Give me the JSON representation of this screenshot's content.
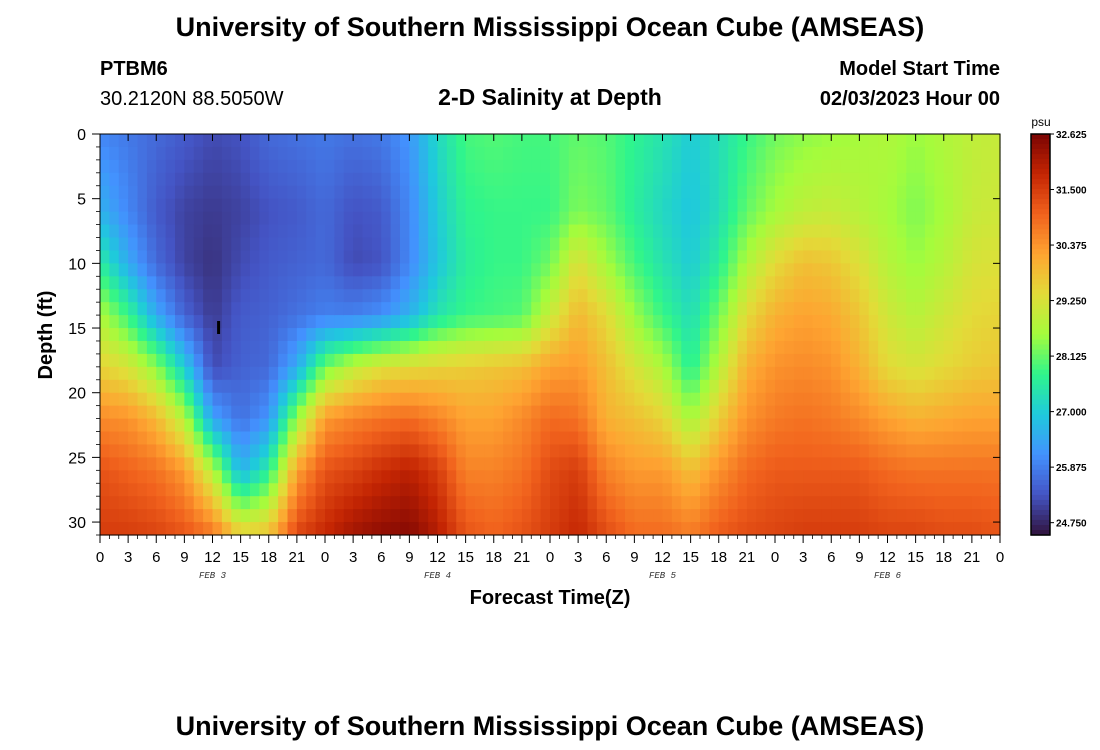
{
  "header": {
    "title": "University of Southern Mississippi Ocean Cube (AMSEAS)",
    "station_id": "PTBM6",
    "coords": "30.2120N  88.5050W",
    "subtitle": "2-D Salinity at Depth",
    "model_label": "Model Start Time",
    "model_time": "02/03/2023 Hour 00"
  },
  "footer": {
    "title": "University of Southern Mississippi Ocean Cube (AMSEAS)"
  },
  "chart_data": {
    "type": "heatmap",
    "title": "2-D Salinity at Depth",
    "xlabel": "Forecast Time(Z)",
    "ylabel": "Depth (ft)",
    "x_hours_range": [
      0,
      96
    ],
    "x_tick_step_hours": 3,
    "x_tick_labels": [
      "0",
      "3",
      "6",
      "9",
      "12",
      "15",
      "18",
      "21",
      "0",
      "3",
      "6",
      "9",
      "12",
      "15",
      "18",
      "21",
      "0",
      "3",
      "6",
      "9",
      "12",
      "15",
      "18",
      "21",
      "0",
      "3",
      "6",
      "9",
      "12",
      "15",
      "18",
      "21",
      "0"
    ],
    "day_labels": [
      {
        "label": "FEB 3",
        "hour": 12
      },
      {
        "label": "FEB 4",
        "hour": 36
      },
      {
        "label": "FEB 5",
        "hour": 60
      },
      {
        "label": "FEB 6",
        "hour": 84
      }
    ],
    "y_range": [
      0,
      31
    ],
    "y_ticks": [
      0,
      5,
      10,
      15,
      20,
      25,
      30
    ],
    "y_reversed": true,
    "colorbar": {
      "unit": "psu",
      "min": 24.5,
      "max": 32.625,
      "tick_values": [
        24.75,
        25.875,
        27.0,
        28.125,
        29.25,
        30.375,
        31.5,
        32.625
      ],
      "tick_labels": [
        "24.750",
        "25.875",
        "27.000",
        "28.125",
        "29.250",
        "30.375",
        "31.500",
        "32.625"
      ],
      "colors": [
        "#30123b",
        "#4454c4",
        "#4391fe",
        "#1fc9dd",
        "#2ff58c",
        "#a4fc3c",
        "#e2dc38",
        "#fea431",
        "#f1621d",
        "#c42503",
        "#7a0403"
      ]
    },
    "marker": {
      "hour": 13,
      "depth_ft": 15
    },
    "grid_cols_hours_step": 1,
    "grid_depth_levels_ft": [
      0,
      1,
      2,
      3,
      4,
      5,
      6,
      7,
      8,
      9,
      10,
      11,
      12,
      13,
      14,
      15,
      16,
      17,
      18,
      19,
      20,
      21,
      22,
      23,
      24,
      25,
      26,
      27,
      28,
      29,
      30,
      31
    ],
    "salinity_keyframes": [
      {
        "hour": 0,
        "profile": [
          [
            0,
            26.0
          ],
          [
            6,
            26.6
          ],
          [
            10,
            27.6
          ],
          [
            14,
            28.7
          ],
          [
            18,
            29.5
          ],
          [
            22,
            30.5
          ],
          [
            26,
            31.2
          ],
          [
            31,
            31.5
          ]
        ]
      },
      {
        "hour": 3,
        "profile": [
          [
            0,
            25.8
          ],
          [
            6,
            26.0
          ],
          [
            10,
            26.5
          ],
          [
            14,
            27.8
          ],
          [
            18,
            29.2
          ],
          [
            22,
            30.4
          ],
          [
            26,
            31.0
          ],
          [
            31,
            31.5
          ]
        ]
      },
      {
        "hour": 6,
        "profile": [
          [
            0,
            25.6
          ],
          [
            6,
            25.4
          ],
          [
            10,
            25.6
          ],
          [
            14,
            26.5
          ],
          [
            18,
            28.4
          ],
          [
            22,
            29.9
          ],
          [
            26,
            30.8
          ],
          [
            31,
            31.4
          ]
        ]
      },
      {
        "hour": 9,
        "profile": [
          [
            0,
            25.4
          ],
          [
            6,
            25.1
          ],
          [
            10,
            25.1
          ],
          [
            14,
            25.5
          ],
          [
            18,
            27.0
          ],
          [
            22,
            28.8
          ],
          [
            26,
            30.3
          ],
          [
            31,
            31.2
          ]
        ]
      },
      {
        "hour": 12,
        "profile": [
          [
            0,
            25.2
          ],
          [
            6,
            25.0
          ],
          [
            10,
            24.9
          ],
          [
            14,
            25.0
          ],
          [
            18,
            25.2
          ],
          [
            22,
            26.4
          ],
          [
            26,
            28.8
          ],
          [
            31,
            30.8
          ]
        ]
      },
      {
        "hour": 15,
        "profile": [
          [
            0,
            25.3
          ],
          [
            6,
            25.1
          ],
          [
            10,
            25.2
          ],
          [
            14,
            25.4
          ],
          [
            18,
            25.5
          ],
          [
            22,
            25.7
          ],
          [
            26,
            26.6
          ],
          [
            31,
            29.6
          ]
        ]
      },
      {
        "hour": 18,
        "profile": [
          [
            0,
            25.6
          ],
          [
            6,
            25.3
          ],
          [
            10,
            25.4
          ],
          [
            14,
            25.5
          ],
          [
            18,
            25.6
          ],
          [
            22,
            26.2
          ],
          [
            26,
            27.6
          ],
          [
            31,
            29.8
          ]
        ]
      },
      {
        "hour": 21,
        "profile": [
          [
            0,
            25.7
          ],
          [
            6,
            25.4
          ],
          [
            10,
            25.5
          ],
          [
            14,
            25.7
          ],
          [
            18,
            26.5
          ],
          [
            22,
            28.5
          ],
          [
            26,
            30.2
          ],
          [
            31,
            31.4
          ]
        ]
      },
      {
        "hour": 24,
        "profile": [
          [
            0,
            25.8
          ],
          [
            6,
            25.6
          ],
          [
            10,
            25.6
          ],
          [
            14,
            25.9
          ],
          [
            18,
            28.2
          ],
          [
            22,
            30.3
          ],
          [
            26,
            31.2
          ],
          [
            31,
            31.8
          ]
        ]
      },
      {
        "hour": 27,
        "profile": [
          [
            0,
            25.7
          ],
          [
            6,
            25.3
          ],
          [
            10,
            25.2
          ],
          [
            14,
            25.9
          ],
          [
            18,
            28.9
          ],
          [
            22,
            30.6
          ],
          [
            26,
            31.4
          ],
          [
            31,
            32.2
          ]
        ]
      },
      {
        "hour": 30,
        "profile": [
          [
            0,
            25.8
          ],
          [
            6,
            25.4
          ],
          [
            10,
            25.3
          ],
          [
            14,
            26.1
          ],
          [
            18,
            29.3
          ],
          [
            22,
            30.8
          ],
          [
            26,
            31.7
          ],
          [
            31,
            32.4
          ]
        ]
      },
      {
        "hour": 33,
        "profile": [
          [
            0,
            26.2
          ],
          [
            6,
            26.0
          ],
          [
            10,
            26.0
          ],
          [
            14,
            26.6
          ],
          [
            18,
            29.4
          ],
          [
            22,
            30.9
          ],
          [
            26,
            31.9
          ],
          [
            31,
            32.5
          ]
        ]
      },
      {
        "hour": 36,
        "profile": [
          [
            0,
            27.2
          ],
          [
            6,
            27.0
          ],
          [
            10,
            26.9
          ],
          [
            14,
            27.4
          ],
          [
            18,
            29.5
          ],
          [
            22,
            30.6
          ],
          [
            26,
            31.5
          ],
          [
            31,
            32.0
          ]
        ]
      },
      {
        "hour": 39,
        "profile": [
          [
            0,
            27.9
          ],
          [
            6,
            27.7
          ],
          [
            10,
            27.6
          ],
          [
            14,
            27.8
          ],
          [
            18,
            29.6
          ],
          [
            22,
            30.2
          ],
          [
            26,
            30.6
          ],
          [
            31,
            31.2
          ]
        ]
      },
      {
        "hour": 42,
        "profile": [
          [
            0,
            28.0
          ],
          [
            6,
            27.8
          ],
          [
            10,
            27.8
          ],
          [
            14,
            27.9
          ],
          [
            18,
            29.7
          ],
          [
            22,
            30.2
          ],
          [
            26,
            30.6
          ],
          [
            31,
            31.0
          ]
        ]
      },
      {
        "hour": 45,
        "profile": [
          [
            0,
            27.9
          ],
          [
            6,
            27.8
          ],
          [
            10,
            27.8
          ],
          [
            14,
            28.0
          ],
          [
            18,
            29.8
          ],
          [
            22,
            30.5
          ],
          [
            26,
            30.8
          ],
          [
            31,
            31.2
          ]
        ]
      },
      {
        "hour": 48,
        "profile": [
          [
            0,
            27.9
          ],
          [
            6,
            27.8
          ],
          [
            10,
            28.2
          ],
          [
            14,
            29.0
          ],
          [
            18,
            30.2
          ],
          [
            22,
            30.9
          ],
          [
            26,
            31.3
          ],
          [
            31,
            31.5
          ]
        ]
      },
      {
        "hour": 51,
        "profile": [
          [
            0,
            28.1
          ],
          [
            6,
            28.3
          ],
          [
            10,
            29.3
          ],
          [
            14,
            29.9
          ],
          [
            18,
            30.3
          ],
          [
            22,
            30.8
          ],
          [
            26,
            31.5
          ],
          [
            31,
            31.8
          ]
        ]
      },
      {
        "hour": 54,
        "profile": [
          [
            0,
            28.0
          ],
          [
            6,
            28.1
          ],
          [
            10,
            28.6
          ],
          [
            14,
            29.4
          ],
          [
            18,
            29.8
          ],
          [
            22,
            30.0
          ],
          [
            26,
            30.6
          ],
          [
            31,
            31.3
          ]
        ]
      },
      {
        "hour": 57,
        "profile": [
          [
            0,
            27.7
          ],
          [
            6,
            27.6
          ],
          [
            10,
            27.9
          ],
          [
            14,
            28.5
          ],
          [
            18,
            29.2
          ],
          [
            22,
            29.8
          ],
          [
            26,
            30.3
          ],
          [
            31,
            30.9
          ]
        ]
      },
      {
        "hour": 60,
        "profile": [
          [
            0,
            27.4
          ],
          [
            6,
            27.2
          ],
          [
            10,
            27.4
          ],
          [
            14,
            27.8
          ],
          [
            18,
            28.7
          ],
          [
            22,
            29.5
          ],
          [
            26,
            30.3
          ],
          [
            31,
            30.9
          ]
        ]
      },
      {
        "hour": 63,
        "profile": [
          [
            0,
            27.0
          ],
          [
            6,
            26.9
          ],
          [
            10,
            27.0
          ],
          [
            14,
            27.3
          ],
          [
            18,
            27.6
          ],
          [
            22,
            28.6
          ],
          [
            26,
            29.8
          ],
          [
            31,
            30.7
          ]
        ]
      },
      {
        "hour": 66,
        "profile": [
          [
            0,
            27.3
          ],
          [
            6,
            27.3
          ],
          [
            10,
            27.6
          ],
          [
            14,
            28.2
          ],
          [
            18,
            28.8
          ],
          [
            22,
            29.6
          ],
          [
            26,
            30.4
          ],
          [
            31,
            31.1
          ]
        ]
      },
      {
        "hour": 69,
        "profile": [
          [
            0,
            27.8
          ],
          [
            6,
            28.1
          ],
          [
            10,
            28.7
          ],
          [
            14,
            29.4
          ],
          [
            18,
            30.0
          ],
          [
            22,
            30.4
          ],
          [
            26,
            30.9
          ],
          [
            31,
            31.3
          ]
        ]
      },
      {
        "hour": 72,
        "profile": [
          [
            0,
            28.2
          ],
          [
            6,
            28.6
          ],
          [
            10,
            29.4
          ],
          [
            14,
            30.0
          ],
          [
            18,
            30.4
          ],
          [
            22,
            30.7
          ],
          [
            26,
            31.1
          ],
          [
            31,
            31.4
          ]
        ]
      },
      {
        "hour": 75,
        "profile": [
          [
            0,
            28.4
          ],
          [
            6,
            28.9
          ],
          [
            10,
            29.8
          ],
          [
            14,
            30.2
          ],
          [
            18,
            30.5
          ],
          [
            22,
            30.8
          ],
          [
            26,
            31.1
          ],
          [
            31,
            31.5
          ]
        ]
      },
      {
        "hour": 78,
        "profile": [
          [
            0,
            28.5
          ],
          [
            6,
            29.0
          ],
          [
            10,
            29.7
          ],
          [
            14,
            30.1
          ],
          [
            18,
            30.4
          ],
          [
            22,
            30.7
          ],
          [
            26,
            31.1
          ],
          [
            31,
            31.5
          ]
        ]
      },
      {
        "hour": 81,
        "profile": [
          [
            0,
            28.6
          ],
          [
            6,
            28.8
          ],
          [
            10,
            29.3
          ],
          [
            14,
            29.7
          ],
          [
            18,
            30.0
          ],
          [
            22,
            30.5
          ],
          [
            26,
            31.1
          ],
          [
            31,
            31.5
          ]
        ]
      },
      {
        "hour": 84,
        "profile": [
          [
            0,
            28.7
          ],
          [
            6,
            28.6
          ],
          [
            10,
            28.8
          ],
          [
            14,
            29.1
          ],
          [
            18,
            29.4
          ],
          [
            22,
            30.2
          ],
          [
            26,
            30.9
          ],
          [
            31,
            31.4
          ]
        ]
      },
      {
        "hour": 87,
        "profile": [
          [
            0,
            28.5
          ],
          [
            6,
            28.3
          ],
          [
            10,
            28.5
          ],
          [
            14,
            28.8
          ],
          [
            18,
            29.2
          ],
          [
            22,
            30.0
          ],
          [
            26,
            30.8
          ],
          [
            31,
            31.4
          ]
        ]
      },
      {
        "hour": 90,
        "profile": [
          [
            0,
            28.7
          ],
          [
            6,
            28.6
          ],
          [
            10,
            28.8
          ],
          [
            14,
            29.1
          ],
          [
            18,
            29.4
          ],
          [
            22,
            30.1
          ],
          [
            26,
            30.8
          ],
          [
            31,
            31.3
          ]
        ]
      },
      {
        "hour": 93,
        "profile": [
          [
            0,
            28.9
          ],
          [
            6,
            29.0
          ],
          [
            10,
            29.2
          ],
          [
            14,
            29.4
          ],
          [
            18,
            29.6
          ],
          [
            22,
            30.2
          ],
          [
            26,
            30.8
          ],
          [
            31,
            31.3
          ]
        ]
      },
      {
        "hour": 96,
        "profile": [
          [
            0,
            29.0
          ],
          [
            6,
            29.1
          ],
          [
            10,
            29.3
          ],
          [
            14,
            29.5
          ],
          [
            18,
            29.7
          ],
          [
            22,
            30.2
          ],
          [
            26,
            30.8
          ],
          [
            31,
            31.2
          ]
        ]
      }
    ]
  }
}
